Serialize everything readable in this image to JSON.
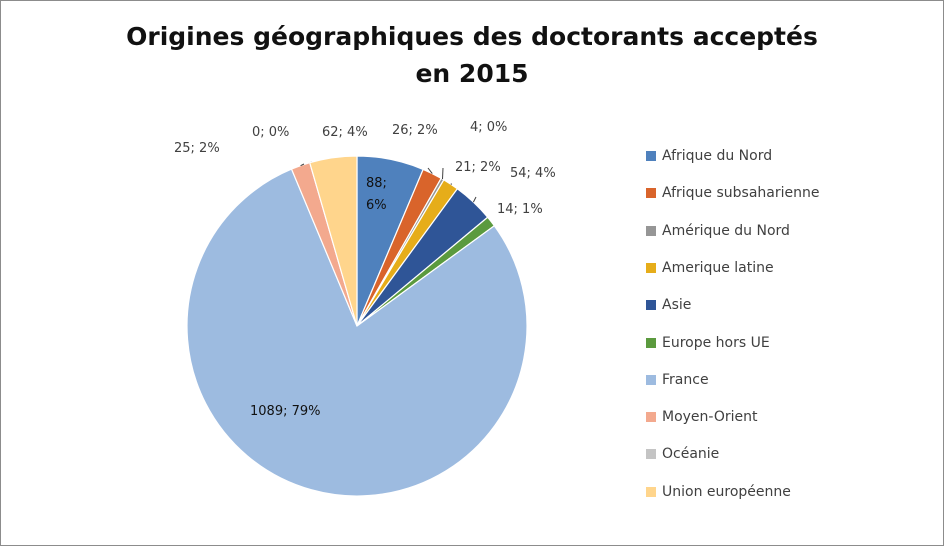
{
  "chart_data": {
    "type": "pie",
    "title_line1": "Origines géographiques des doctorants acceptés",
    "title_line2": "en 2015",
    "legend_position": "right",
    "slices": [
      {
        "label": "Afrique du Nord",
        "value": 88,
        "percent": "6%",
        "color": "#4f81bd",
        "data_label": "88; 6%"
      },
      {
        "label": "Afrique subsaharienne",
        "value": 26,
        "percent": "2%",
        "color": "#d9642b",
        "data_label": "26; 2%"
      },
      {
        "label": "Amérique du Nord",
        "value": 4,
        "percent": "0%",
        "color": "#969696",
        "data_label": "4; 0%"
      },
      {
        "label": "Amerique latine",
        "value": 21,
        "percent": "2%",
        "color": "#e6ad1a",
        "data_label": "21; 2%"
      },
      {
        "label": "Asie",
        "value": 54,
        "percent": "4%",
        "color": "#2f5597",
        "data_label": "54; 4%"
      },
      {
        "label": "Europe hors UE",
        "value": 14,
        "percent": "1%",
        "color": "#5b9a3e",
        "data_label": "14; 1%"
      },
      {
        "label": "France",
        "value": 1089,
        "percent": "79%",
        "color": "#9dbbe0",
        "data_label": "1089; 79%"
      },
      {
        "label": "Moyen-Orient",
        "value": 25,
        "percent": "2%",
        "color": "#f3a98e",
        "data_label": "25; 2%"
      },
      {
        "label": "Océanie",
        "value": 0,
        "percent": "0%",
        "color": "#c4c4c4",
        "data_label": "0; 0%"
      },
      {
        "label": "Union européenne",
        "value": 62,
        "percent": "4%",
        "color": "#ffd58c",
        "data_label": "62; 4%"
      }
    ]
  }
}
